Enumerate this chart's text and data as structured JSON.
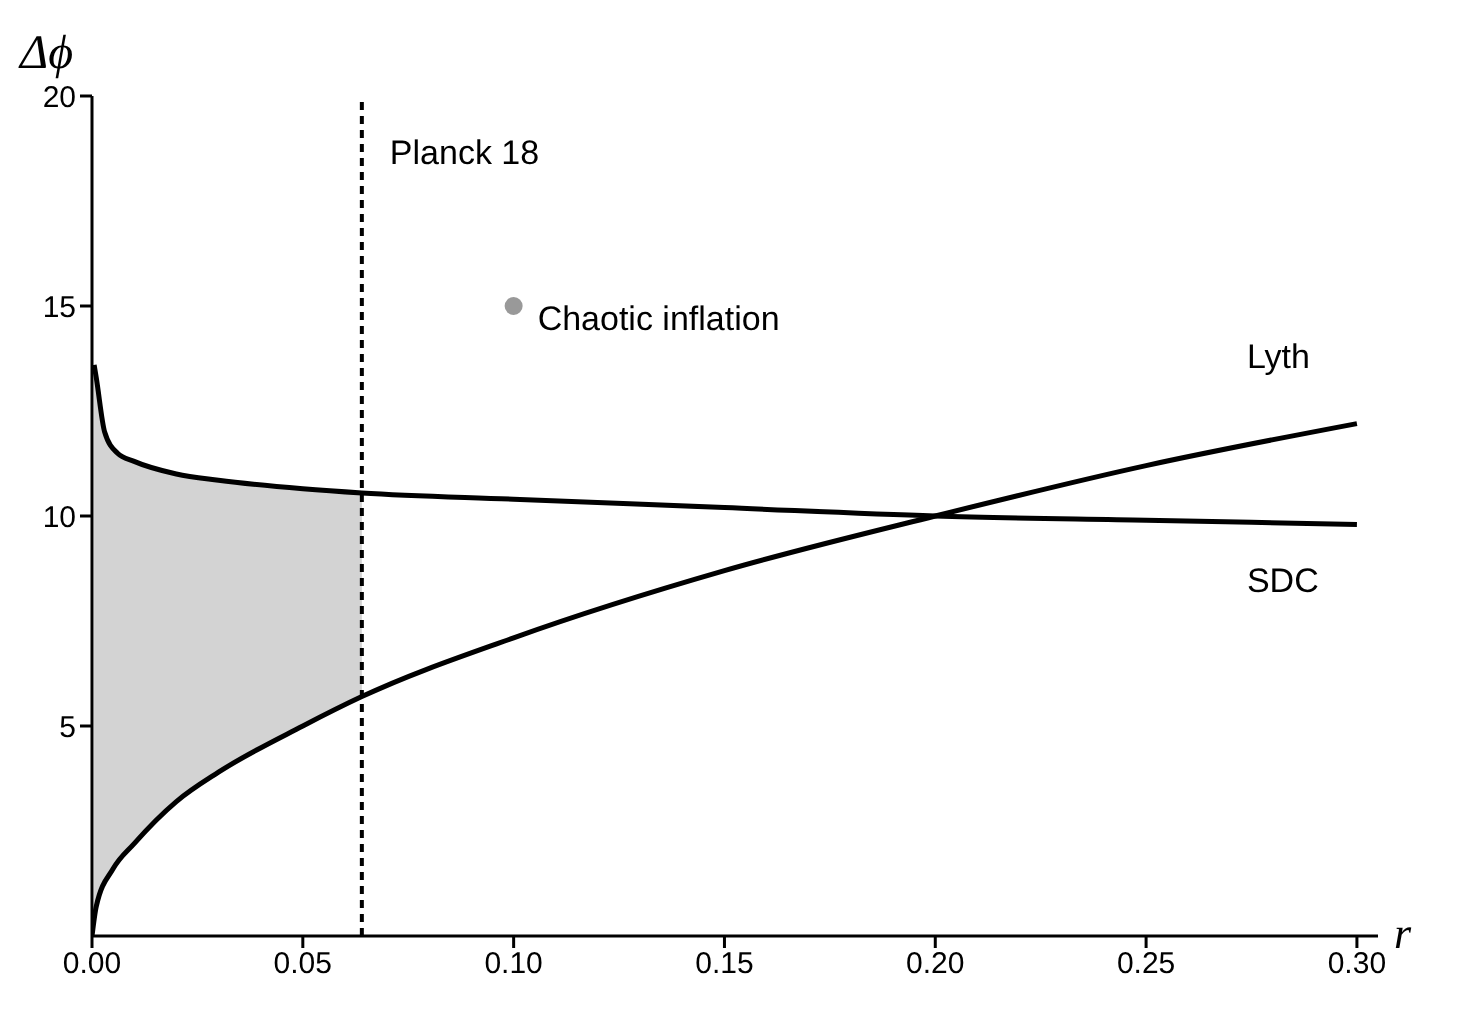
{
  "chart_data": {
    "type": "line",
    "xlabel": "r",
    "ylabel": "Δϕ",
    "xlim": [
      0,
      0.305
    ],
    "ylim": [
      0,
      20
    ],
    "xticks": [
      {
        "value": 0,
        "label": "0.00"
      },
      {
        "value": 0.05,
        "label": "0.05"
      },
      {
        "value": 0.1,
        "label": "0.10"
      },
      {
        "value": 0.15,
        "label": "0.15"
      },
      {
        "value": 0.2,
        "label": "0.20"
      },
      {
        "value": 0.25,
        "label": "0.25"
      },
      {
        "value": 0.3,
        "label": "0.30"
      }
    ],
    "yticks": [
      5,
      10,
      15,
      20
    ],
    "grid": false,
    "legend": false,
    "marker": "none",
    "series": [
      {
        "name": "Lyth",
        "color": "#000000",
        "x": [
          0,
          0.001,
          0.005,
          0.01,
          0.02,
          0.03,
          0.05,
          0.064,
          0.1,
          0.15,
          0.2,
          0.25,
          0.3
        ],
        "values": [
          0,
          0.7,
          1.6,
          2.2,
          3.2,
          3.9,
          5.0,
          5.7,
          7.1,
          8.7,
          10.0,
          11.2,
          12.2
        ]
      },
      {
        "name": "SDC",
        "color": "#000000",
        "x": [
          0.0005,
          0.001,
          0.003,
          0.006,
          0.01,
          0.02,
          0.03,
          0.05,
          0.064,
          0.1,
          0.15,
          0.2,
          0.25,
          0.3
        ],
        "values": [
          13.6,
          13.3,
          12.0,
          11.5,
          11.3,
          11.0,
          10.85,
          10.65,
          10.55,
          10.4,
          10.2,
          10.0,
          9.9,
          9.8
        ],
        "lower": [
          0.5,
          0.7,
          1.2,
          1.7,
          2.2,
          3.2,
          3.9,
          5.0,
          5.7,
          null,
          null,
          null,
          null,
          null
        ],
        "upper": [
          13.6,
          13.3,
          12.0,
          11.5,
          11.3,
          11.0,
          10.85,
          10.65,
          10.55,
          null,
          null,
          null,
          null,
          null
        ]
      },
      {
        "type": "scatter",
        "name": "Chaotic inflation",
        "color": "#999999",
        "marker": "circle",
        "x": [
          0.1
        ],
        "values": [
          15
        ]
      }
    ],
    "ref_lines": [
      {
        "axis": "x",
        "value": 0.064,
        "label": "Planck 18",
        "line_style": "dashed",
        "color": "#000000"
      }
    ]
  }
}
